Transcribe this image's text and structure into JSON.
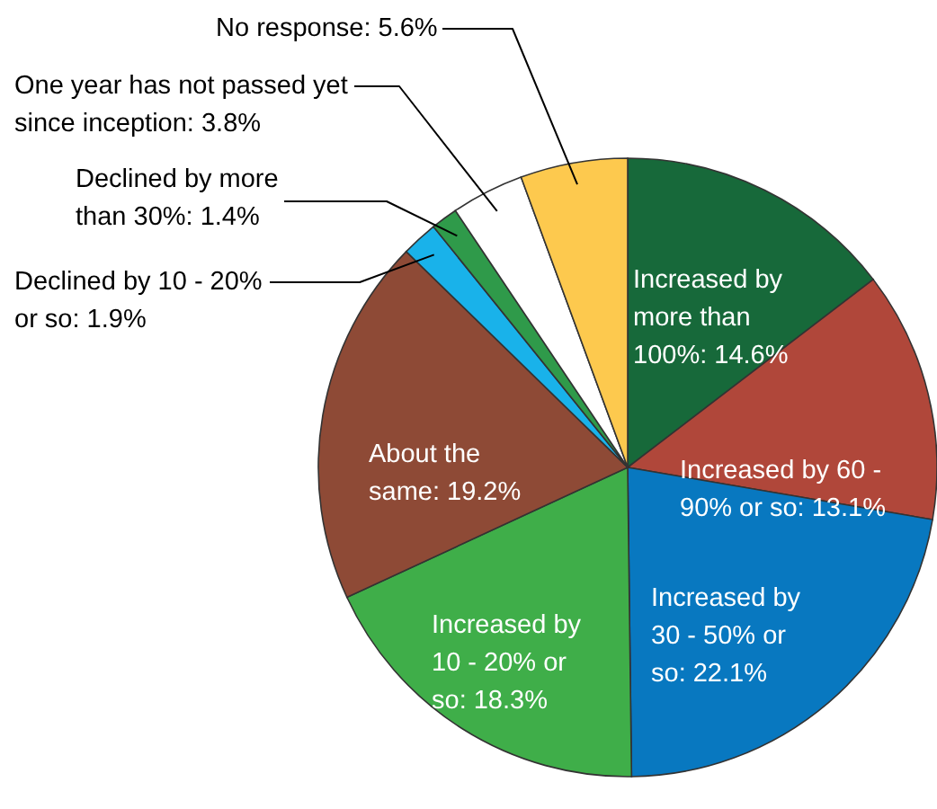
{
  "chart_data": {
    "type": "pie",
    "categories": [
      "Increased by more than 100%",
      "Increased by 60 - 90% or so",
      "Increased by 30 - 50% or so",
      "Increased by 10 - 20% or so",
      "About the same",
      "Declined by 10 - 20% or so",
      "Declined by more than 30%",
      "One year has not passed yet since inception",
      "No response"
    ],
    "values": [
      14.6,
      13.1,
      22.1,
      18.3,
      19.2,
      1.9,
      1.4,
      3.8,
      5.6
    ],
    "value_labels": [
      "14.6%",
      "13.1%",
      "22.1%",
      "18.3%",
      "19.2%",
      "1.9%",
      "1.4%",
      "3.8%",
      "5.6%"
    ],
    "colors": [
      "#17693a",
      "#b0473a",
      "#0878c0",
      "#3fae49",
      "#8e4a36",
      "#19b2ea",
      "#2f9a4a",
      "#ffffff",
      "#fdc94e"
    ]
  }
}
